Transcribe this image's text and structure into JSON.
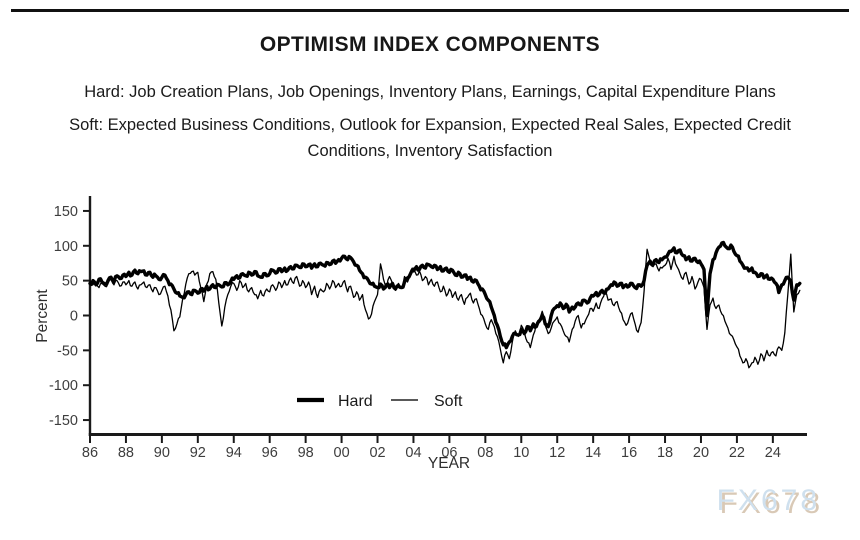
{
  "header": {
    "title": "OPTIMISM INDEX COMPONENTS",
    "subtitle_hard": "Hard: Job Creation Plans, Job Openings, Inventory Plans, Earnings, Capital Expenditure Plans",
    "subtitle_soft": "Soft: Expected Business Conditions, Outlook for Expansion, Expected Real Sales, Expected Credit Conditions, Inventory Satisfaction"
  },
  "watermark": {
    "text": "FX678",
    "color": "#cfe0ee",
    "shadow_color": "#d9c9b6"
  },
  "chart_data": {
    "type": "line",
    "title": "OPTIMISM INDEX COMPONENTS",
    "xlabel": "YEAR",
    "ylabel": "Percent",
    "grid": false,
    "legend_position": "bottom-center-inside",
    "legend": {
      "hard": "Hard",
      "soft": "Soft"
    },
    "x_start": 1986.0,
    "x_step_years": 0.166667,
    "x_axis": {
      "min": 1986,
      "max": 2025.9,
      "tick_values": [
        1986,
        1988,
        1990,
        1992,
        1994,
        1996,
        1998,
        2000,
        2002,
        2004,
        2006,
        2008,
        2010,
        2012,
        2014,
        2016,
        2018,
        2020,
        2022,
        2024
      ],
      "tick_labels": [
        "86",
        "88",
        "90",
        "92",
        "94",
        "96",
        "98",
        "00",
        "02",
        "04",
        "06",
        "08",
        "10",
        "12",
        "14",
        "16",
        "18",
        "20",
        "22",
        "24"
      ]
    },
    "y_axis": {
      "min": -170,
      "max": 170,
      "tick_values": [
        150,
        100,
        50,
        0,
        -50,
        -100,
        -150
      ],
      "tick_labels": [
        "150",
        "100",
        "50",
        "0",
        "-50",
        "-100",
        "-150"
      ]
    },
    "series": [
      {
        "name": "Hard",
        "color": "#000000",
        "stroke_width": 3.4,
        "values": [
          46,
          50,
          44,
          52,
          48,
          45,
          50,
          55,
          48,
          57,
          53,
          58,
          56,
          62,
          58,
          65,
          60,
          63,
          64,
          58,
          62,
          55,
          57,
          52,
          55,
          58,
          50,
          45,
          38,
          32,
          28,
          26,
          30,
          34,
          30,
          36,
          32,
          38,
          35,
          42,
          38,
          44,
          40,
          44,
          41,
          47,
          44,
          49,
          52,
          57,
          54,
          60,
          57,
          62,
          58,
          63,
          57,
          55,
          60,
          57,
          60,
          65,
          61,
          67,
          63,
          68,
          65,
          70,
          67,
          72,
          69,
          74,
          70,
          73,
          68,
          74,
          70,
          75,
          72,
          76,
          73,
          78,
          75,
          80,
          82,
          85,
          80,
          83,
          77,
          72,
          65,
          60,
          55,
          50,
          45,
          42,
          40,
          45,
          38,
          44,
          40,
          46,
          38,
          42,
          40,
          48,
          54,
          60,
          64,
          70,
          66,
          72,
          68,
          73,
          70,
          72,
          66,
          70,
          64,
          68,
          62,
          65,
          58,
          62,
          55,
          58,
          52,
          55,
          48,
          50,
          42,
          38,
          30,
          22,
          12,
          0,
          -14,
          -30,
          -42,
          -46,
          -38,
          -30,
          -26,
          -28,
          -20,
          -26,
          -16,
          -22,
          -12,
          -16,
          -8,
          0,
          -12,
          -16,
          0,
          10,
          14,
          18,
          10,
          16,
          5,
          12,
          12,
          18,
          15,
          22,
          18,
          25,
          28,
          33,
          30,
          36,
          32,
          38,
          44,
          48,
          42,
          46,
          40,
          44,
          42,
          46,
          40,
          44,
          42,
          50,
          72,
          78,
          74,
          80,
          76,
          80,
          84,
          88,
          92,
          97,
          90,
          94,
          86,
          80,
          84,
          78,
          82,
          76,
          74,
          66,
          0,
          60,
          80,
          90,
          98,
          104,
          100,
          96,
          101,
          92,
          86,
          78,
          72,
          68,
          64,
          68,
          62,
          56,
          60,
          54,
          58,
          52,
          52,
          46,
          33,
          44,
          50,
          55,
          50,
          22,
          44,
          46
        ]
      },
      {
        "name": "Soft",
        "color": "#000000",
        "stroke_width": 1.3,
        "values": [
          50,
          44,
          48,
          40,
          46,
          42,
          46,
          52,
          44,
          50,
          42,
          48,
          44,
          50,
          42,
          48,
          38,
          44,
          48,
          40,
          44,
          34,
          40,
          30,
          36,
          42,
          28,
          8,
          -22,
          -12,
          -2,
          25,
          45,
          60,
          63,
          58,
          62,
          40,
          20,
          45,
          60,
          63,
          52,
          18,
          -15,
          12,
          30,
          42,
          46,
          36,
          50,
          40,
          46,
          34,
          40,
          30,
          24,
          36,
          28,
          38,
          34,
          44,
          36,
          48,
          40,
          50,
          44,
          54,
          46,
          56,
          42,
          50,
          40,
          48,
          30,
          42,
          26,
          38,
          34,
          46,
          38,
          50,
          40,
          46,
          42,
          50,
          34,
          42,
          26,
          34,
          22,
          30,
          8,
          -5,
          2,
          20,
          30,
          74,
          52,
          40,
          56,
          46,
          36,
          46,
          40,
          56,
          48,
          62,
          68,
          58,
          64,
          50,
          56,
          44,
          52,
          42,
          48,
          34,
          42,
          28,
          38,
          26,
          34,
          22,
          30,
          16,
          26,
          32,
          18,
          24,
          10,
          0,
          -12,
          -20,
          -6,
          -16,
          -30,
          -48,
          -68,
          -52,
          -62,
          -38,
          -22,
          -30,
          -14,
          -24,
          -38,
          -46,
          -28,
          -12,
          -6,
          6,
          -14,
          -26,
          -18,
          -8,
          -2,
          -12,
          -22,
          -30,
          -38,
          -20,
          -8,
          0,
          -18,
          -12,
          -2,
          10,
          6,
          18,
          10,
          24,
          34,
          22,
          24,
          14,
          20,
          6,
          -6,
          -14,
          -4,
          4,
          -12,
          -24,
          -10,
          35,
          95,
          78,
          70,
          74,
          64,
          68,
          72,
          82,
          66,
          85,
          70,
          60,
          52,
          62,
          45,
          56,
          38,
          48,
          52,
          40,
          -20,
          15,
          25,
          10,
          15,
          2,
          -8,
          -18,
          -28,
          -35,
          -45,
          -58,
          -68,
          -62,
          -75,
          -68,
          -60,
          -70,
          -55,
          -65,
          -50,
          -58,
          -52,
          -58,
          -45,
          -50,
          -25,
          30,
          88,
          5,
          30,
          36
        ]
      }
    ]
  }
}
